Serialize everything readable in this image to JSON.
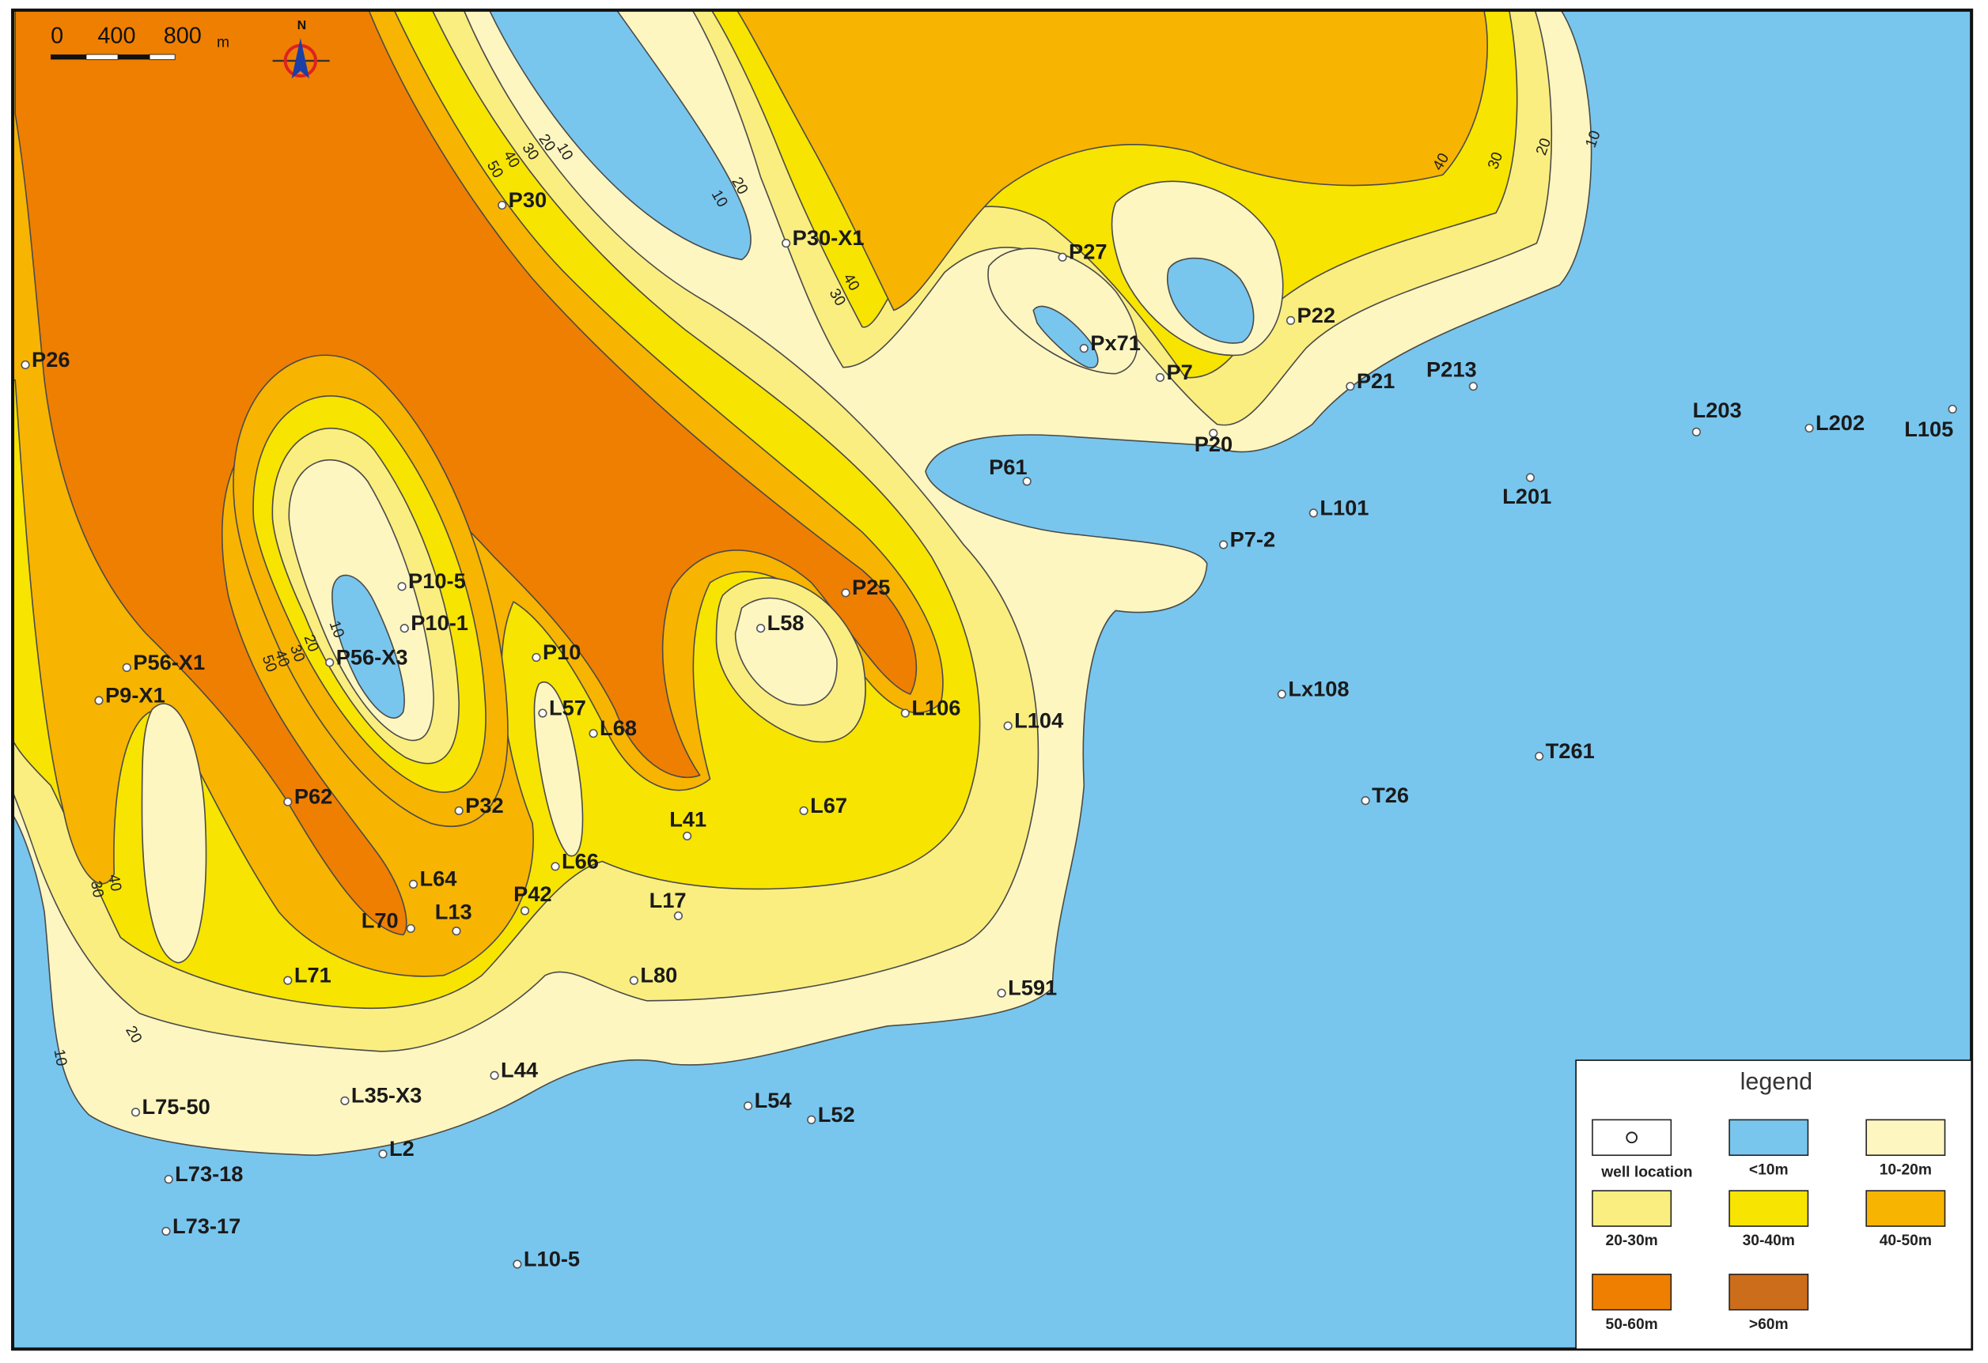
{
  "scale_bar": {
    "labels": [
      "0",
      "400",
      "800"
    ],
    "unit": "m"
  },
  "north": "N",
  "contour_labels": [
    "50",
    "40",
    "30",
    "20",
    "10",
    "10",
    "20",
    "30",
    "40",
    "40",
    "30",
    "20",
    "10",
    "10",
    "20",
    "30",
    "40",
    "50",
    "40",
    "30",
    "20",
    "10"
  ],
  "wells": [
    "P30",
    "P30-X1",
    "P27",
    "Px71",
    "P7",
    "P22",
    "P21",
    "P213",
    "P20",
    "P61",
    "L203",
    "L202",
    "L105",
    "L201",
    "L101",
    "P7-2",
    "P26",
    "P25",
    "P10-5",
    "P10-1",
    "P56-X1",
    "P56-X3",
    "P10",
    "P9-X1",
    "L58",
    "L57",
    "L68",
    "L106",
    "L104",
    "Lx108",
    "T261",
    "T26",
    "P62",
    "P32",
    "L67",
    "L41",
    "L66",
    "L64",
    "P42",
    "L17",
    "L70",
    "L13",
    "L71",
    "L80",
    "L591",
    "L44",
    "L75-50",
    "L35-X3",
    "L54",
    "L52",
    "L2",
    "L73-18",
    "L73-17",
    "L10-5"
  ],
  "legend": {
    "title": "legend",
    "items": [
      "well location",
      "<10m",
      "10-20m",
      "20-30m",
      "30-40m",
      "40-50m",
      "50-60m",
      ">60m"
    ]
  }
}
